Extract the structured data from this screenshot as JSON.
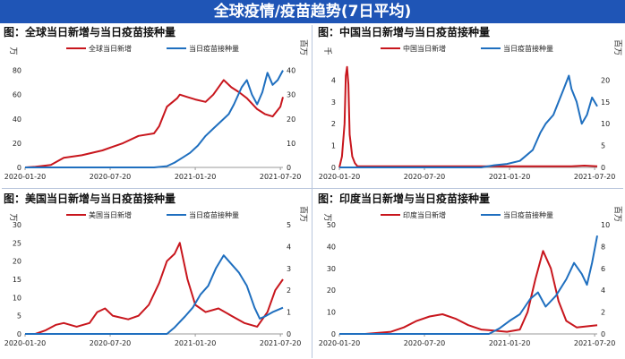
{
  "header": {
    "title": "全球疫情/疫苗趋势(7日平均)"
  },
  "colors": {
    "banner": "#1f55b6",
    "cases": "#c8161d",
    "vaccines": "#1f6fbf",
    "axis": "#999999"
  },
  "chart_data": [
    {
      "type": "line",
      "title": "图：全球当日新增与当日疫苗接种量",
      "left_unit": "万",
      "right_unit": "百万",
      "x_ticks": [
        "2020-01-20",
        "2020-07-20",
        "2021-01-20",
        "2021-07-20"
      ],
      "left_ylim": [
        0,
        90
      ],
      "left_ticks": [
        0,
        20,
        40,
        60,
        80
      ],
      "right_ylim": [
        0,
        45
      ],
      "right_ticks": [
        0,
        10,
        20,
        30,
        40
      ],
      "series": [
        {
          "name": "全球当日新增",
          "axis": "left",
          "x": [
            0,
            0.04,
            0.06,
            0.1,
            0.15,
            0.22,
            0.3,
            0.38,
            0.44,
            0.5,
            0.52,
            0.55,
            0.59,
            0.6,
            0.63,
            0.66,
            0.7,
            0.73,
            0.77,
            0.8,
            0.83,
            0.86,
            0.9,
            0.93,
            0.96,
            0.99,
            1.0
          ],
          "values": [
            0,
            0.5,
            1,
            2,
            8,
            10,
            14,
            20,
            26,
            28,
            34,
            50,
            57,
            60,
            58,
            56,
            54,
            60,
            72,
            66,
            62,
            57,
            48,
            44,
            42,
            50,
            58
          ]
        },
        {
          "name": "当日疫苗接种量",
          "axis": "right",
          "x": [
            0,
            0.5,
            0.55,
            0.58,
            0.61,
            0.64,
            0.67,
            0.7,
            0.73,
            0.76,
            0.79,
            0.81,
            0.84,
            0.86,
            0.88,
            0.9,
            0.92,
            0.94,
            0.96,
            0.98,
            1.0
          ],
          "values": [
            0,
            0,
            0.5,
            2,
            4,
            6,
            9,
            13,
            16,
            19,
            22,
            26,
            33,
            36,
            30,
            26,
            31,
            39,
            34,
            36,
            40
          ]
        }
      ]
    },
    {
      "type": "line",
      "title": "图：中国当日新增与当日疫苗接种量",
      "left_unit": "千",
      "right_unit": "百万",
      "x_ticks": [
        "2020-01-20",
        "2020-07-20",
        "2021-01-20",
        "2021-07-20"
      ],
      "left_ylim": [
        0,
        5
      ],
      "left_ticks": [
        0,
        1,
        2,
        3,
        4
      ],
      "right_ylim": [
        0,
        25
      ],
      "right_ticks": [
        0,
        5,
        10,
        15,
        20
      ],
      "series": [
        {
          "name": "中国当日新增",
          "axis": "left",
          "x": [
            0,
            0.01,
            0.02,
            0.025,
            0.03,
            0.035,
            0.04,
            0.05,
            0.06,
            0.07,
            0.1,
            0.2,
            0.3,
            0.4,
            0.5,
            0.6,
            0.7,
            0.8,
            0.9,
            0.95,
            1.0
          ],
          "values": [
            0,
            0.5,
            2,
            4.2,
            4.6,
            3.8,
            1.5,
            0.5,
            0.2,
            0.05,
            0.05,
            0.05,
            0.05,
            0.05,
            0.05,
            0.05,
            0.05,
            0.05,
            0.05,
            0.08,
            0.05
          ]
        },
        {
          "name": "当日疫苗接种量",
          "axis": "right",
          "x": [
            0,
            0.55,
            0.6,
            0.65,
            0.7,
            0.72,
            0.75,
            0.78,
            0.8,
            0.83,
            0.85,
            0.87,
            0.89,
            0.9,
            0.92,
            0.94,
            0.96,
            0.98,
            1.0
          ],
          "values": [
            0,
            0,
            0.5,
            0.8,
            1.5,
            2.5,
            4,
            8,
            10,
            12,
            15,
            18,
            21,
            18,
            15,
            10,
            12,
            16,
            14
          ]
        }
      ]
    },
    {
      "type": "line",
      "title": "图：美国当日新增与当日疫苗接种量",
      "left_unit": "万",
      "right_unit": "百万",
      "x_ticks": [
        "2020-01-20",
        "2020-07-20",
        "2021-01-20",
        "2021-07-20"
      ],
      "left_ylim": [
        0,
        30
      ],
      "left_ticks": [
        0,
        5,
        10,
        15,
        20,
        25,
        30
      ],
      "right_ylim": [
        0,
        5
      ],
      "right_ticks": [
        0,
        1,
        2,
        3,
        4,
        5
      ],
      "series": [
        {
          "name": "美国当日新增",
          "axis": "left",
          "x": [
            0,
            0.04,
            0.08,
            0.12,
            0.15,
            0.2,
            0.25,
            0.28,
            0.31,
            0.34,
            0.4,
            0.44,
            0.48,
            0.52,
            0.55,
            0.58,
            0.6,
            0.63,
            0.66,
            0.7,
            0.75,
            0.8,
            0.85,
            0.9,
            0.94,
            0.97,
            1.0
          ],
          "values": [
            0,
            0,
            1,
            2.5,
            3,
            2,
            3,
            6,
            7,
            5,
            4,
            5,
            8,
            14,
            20,
            22,
            25,
            15,
            8,
            6,
            7,
            5,
            3,
            2,
            6,
            12,
            15
          ]
        },
        {
          "name": "当日疫苗接种量",
          "axis": "right",
          "x": [
            0,
            0.55,
            0.58,
            0.62,
            0.65,
            0.68,
            0.71,
            0.74,
            0.77,
            0.8,
            0.83,
            0.86,
            0.89,
            0.91,
            0.93,
            0.96,
            1.0
          ],
          "values": [
            0,
            0,
            0.3,
            0.8,
            1.2,
            1.8,
            2.2,
            3,
            3.6,
            3.2,
            2.8,
            2.2,
            1.2,
            0.7,
            0.8,
            1.0,
            1.2
          ]
        }
      ]
    },
    {
      "type": "line",
      "title": "图：印度当日新增与当日疫苗接种量",
      "left_unit": "万",
      "right_unit": "百万",
      "x_ticks": [
        "2020-01-20",
        "2020-07-20",
        "2021-01-20",
        "2021-07-20"
      ],
      "left_ylim": [
        0,
        50
      ],
      "left_ticks": [
        0,
        10,
        20,
        30,
        40,
        50
      ],
      "right_ylim": [
        0,
        10
      ],
      "right_ticks": [
        0,
        2,
        4,
        6,
        8,
        10
      ],
      "series": [
        {
          "name": "印度当日新增",
          "axis": "left",
          "x": [
            0,
            0.1,
            0.2,
            0.25,
            0.3,
            0.35,
            0.4,
            0.45,
            0.5,
            0.55,
            0.6,
            0.65,
            0.7,
            0.73,
            0.76,
            0.79,
            0.82,
            0.85,
            0.88,
            0.92,
            0.96,
            1.0
          ],
          "values": [
            0,
            0,
            1,
            3,
            6,
            8,
            9,
            7,
            4,
            2,
            1.5,
            1,
            2,
            10,
            25,
            38,
            30,
            15,
            6,
            3,
            3.5,
            4
          ]
        },
        {
          "name": "当日疫苗接种量",
          "axis": "right",
          "x": [
            0,
            0.58,
            0.62,
            0.66,
            0.7,
            0.74,
            0.77,
            0.8,
            0.84,
            0.88,
            0.91,
            0.94,
            0.96,
            0.98,
            1.0
          ],
          "values": [
            0,
            0,
            0.5,
            1.2,
            1.8,
            3.2,
            3.8,
            2.5,
            3.5,
            5,
            6.5,
            5.5,
            4.5,
            6.5,
            9
          ]
        }
      ]
    }
  ]
}
